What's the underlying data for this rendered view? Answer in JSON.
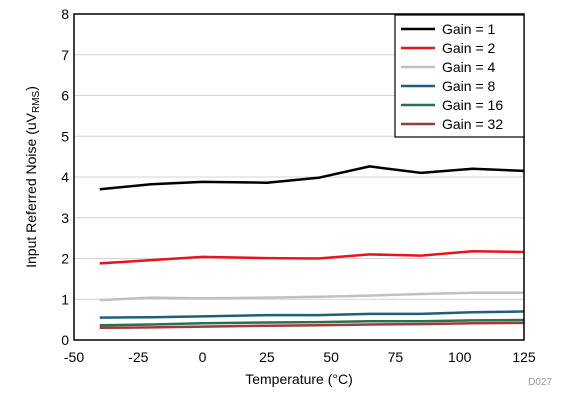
{
  "chart_data": {
    "type": "line",
    "title": "",
    "xlabel": "Temperature (°C)",
    "ylabel_main": "Input Referred Noise (uV",
    "ylabel_sub": "RMS",
    "ylabel_close": ")",
    "xlim": [
      -50,
      125
    ],
    "ylim": [
      0,
      8
    ],
    "xticks": [
      -50,
      -25,
      0,
      25,
      50,
      75,
      100,
      125
    ],
    "yticks": [
      0,
      1,
      2,
      3,
      4,
      5,
      6,
      7,
      8
    ],
    "grid": "horizontal",
    "legend_position": "top-right",
    "x": [
      -40,
      -20,
      0,
      25,
      45,
      65,
      85,
      105,
      125
    ],
    "series": [
      {
        "name": "Gain = 1",
        "color": "#000000",
        "values": [
          3.7,
          3.82,
          3.88,
          3.86,
          3.98,
          4.26,
          4.1,
          4.2,
          4.15
        ]
      },
      {
        "name": "Gain = 2",
        "color": "#e8141c",
        "values": [
          1.88,
          1.96,
          2.04,
          2.01,
          2.0,
          2.1,
          2.07,
          2.18,
          2.16
        ]
      },
      {
        "name": "Gain = 4",
        "color": "#c0c0c0",
        "values": [
          0.98,
          1.04,
          1.02,
          1.04,
          1.06,
          1.09,
          1.13,
          1.16,
          1.16
        ]
      },
      {
        "name": "Gain = 8",
        "color": "#1f5f7a",
        "values": [
          0.55,
          0.56,
          0.58,
          0.61,
          0.61,
          0.64,
          0.64,
          0.68,
          0.7
        ]
      },
      {
        "name": "Gain = 16",
        "color": "#2a7050",
        "values": [
          0.36,
          0.38,
          0.41,
          0.43,
          0.44,
          0.46,
          0.46,
          0.48,
          0.49
        ]
      },
      {
        "name": "Gain = 32",
        "color": "#a03a3a",
        "values": [
          0.3,
          0.31,
          0.33,
          0.35,
          0.36,
          0.38,
          0.39,
          0.41,
          0.42
        ]
      }
    ]
  },
  "figure_code": "D027"
}
